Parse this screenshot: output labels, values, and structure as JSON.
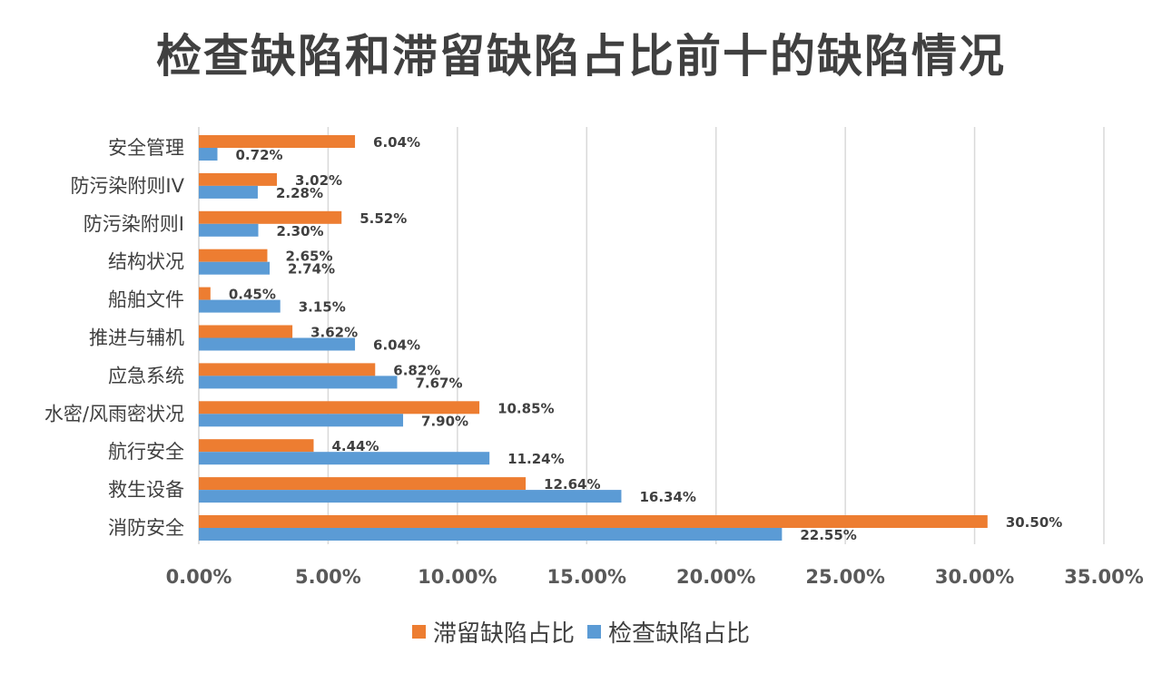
{
  "chart_data": {
    "type": "bar",
    "orientation": "horizontal",
    "title": "检查缺陷和滞留缺陷占比前十的缺陷情况",
    "categories": [
      "安全管理",
      "防污染附则IV",
      "防污染附则I",
      "结构状况",
      "船舶文件",
      "推进与辅机",
      "应急系统",
      "水密/风雨密状况",
      "航行安全",
      "救生设备",
      "消防安全"
    ],
    "series": [
      {
        "name": "滞留缺陷占比",
        "color": "#ED7D31",
        "values": [
          6.04,
          3.02,
          5.52,
          2.65,
          0.45,
          3.62,
          6.82,
          10.85,
          4.44,
          12.64,
          30.5
        ],
        "labels": [
          "6.04%",
          "3.02%",
          "5.52%",
          "2.65%",
          "0.45%",
          "3.62%",
          "6.82%",
          "10.85%",
          "4.44%",
          "12.64%",
          "30.50%"
        ]
      },
      {
        "name": "检查缺陷占比",
        "color": "#5B9BD5",
        "values": [
          0.72,
          2.28,
          2.3,
          2.74,
          3.15,
          6.04,
          7.67,
          7.9,
          11.24,
          16.34,
          22.55
        ],
        "labels": [
          "0.72%",
          "2.28%",
          "2.30%",
          "2.74%",
          "3.15%",
          "6.04%",
          "7.67%",
          "7.90%",
          "11.24%",
          "16.34%",
          "22.55%"
        ]
      }
    ],
    "xlim": [
      0,
      35
    ],
    "xticks": [
      0,
      5,
      10,
      15,
      20,
      25,
      30,
      35
    ],
    "xtick_labels": [
      "0.00%",
      "5.00%",
      "10.00%",
      "15.00%",
      "20.00%",
      "25.00%",
      "30.00%",
      "35.00%"
    ],
    "grid": true,
    "legend_position": "bottom",
    "legend": [
      {
        "name": "滞留缺陷占比",
        "color": "#ED7D31"
      },
      {
        "name": "检查缺陷占比",
        "color": "#5B9BD5"
      }
    ]
  }
}
